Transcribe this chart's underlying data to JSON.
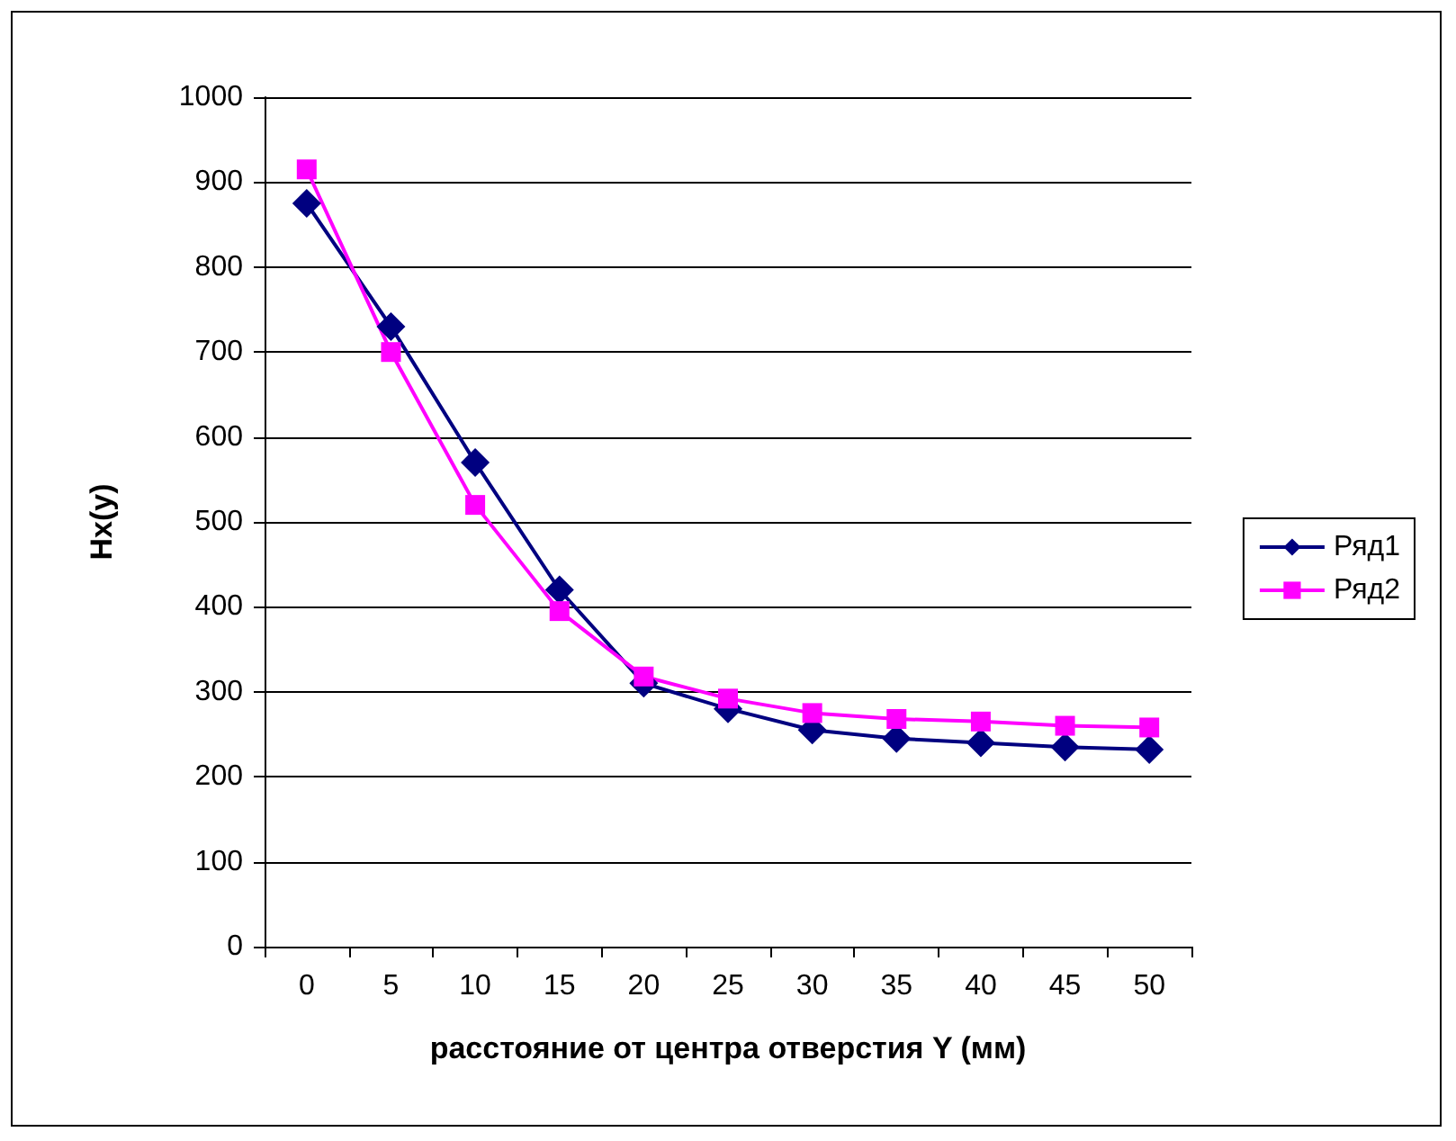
{
  "chart_data": {
    "type": "line",
    "xlabel": "расстояние от центра отверстия Y (мм)",
    "ylabel": "Hx(y)",
    "categories": [
      "0",
      "5",
      "10",
      "15",
      "20",
      "25",
      "30",
      "35",
      "40",
      "45",
      "50"
    ],
    "series": [
      {
        "name": "Ряд1",
        "color": "#000080",
        "marker": "diamond",
        "values": [
          875,
          730,
          570,
          420,
          310,
          280,
          255,
          245,
          240,
          235,
          232
        ]
      },
      {
        "name": "Ряд2",
        "color": "#ff00ff",
        "marker": "square",
        "values": [
          915,
          700,
          520,
          395,
          318,
          292,
          275,
          268,
          265,
          260,
          258
        ]
      }
    ],
    "ylim": [
      0,
      1000
    ],
    "yticks": [
      0,
      100,
      200,
      300,
      400,
      500,
      600,
      700,
      800,
      900,
      1000
    ],
    "grid": "y",
    "legend": "right"
  }
}
